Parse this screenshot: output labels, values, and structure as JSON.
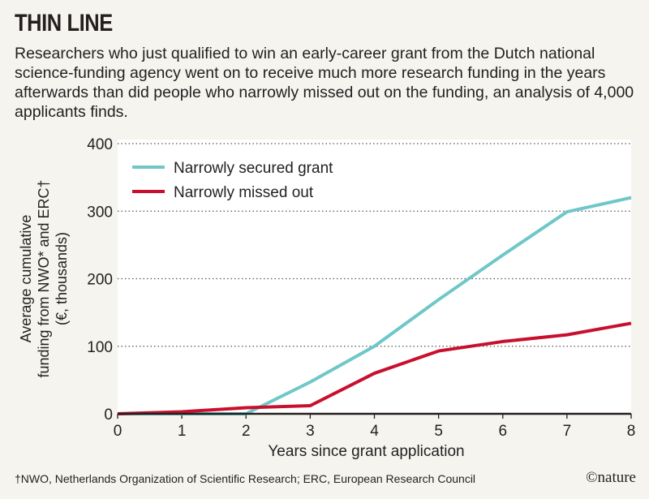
{
  "title": "THIN LINE",
  "subtitle": "Researchers who just qualified to win an early-career grant from the Dutch national science-funding agency went on to receive much more research funding in the years afterwards than did people who narrowly missed out on the funding, an analysis of 4,000 applicants finds.",
  "footnote": "†NWO, Netherlands Organization of Scientific Research; ERC, European Research Council",
  "logo": "©nature",
  "chart_data": {
    "type": "line",
    "xlabel": "Years since grant application",
    "ylabel_lines": [
      "Average cumulative",
      "funding from NWO* and ERC†",
      "(€, thousands)"
    ],
    "x": [
      0,
      1,
      2,
      3,
      4,
      5,
      6,
      7,
      8
    ],
    "xlim": [
      0,
      8
    ],
    "ylim": [
      0,
      400
    ],
    "xticks": [
      0,
      1,
      2,
      3,
      4,
      5,
      6,
      7,
      8
    ],
    "yticks": [
      0,
      100,
      200,
      300,
      400
    ],
    "grid": "horizontal dotted",
    "legend": "top-left",
    "series": [
      {
        "name": "Narrowly secured grant",
        "color": "#6fc7c7",
        "values": [
          0,
          0,
          0,
          47,
          100,
          169,
          235,
          299,
          320
        ]
      },
      {
        "name": "Narrowly missed out",
        "color": "#c8102e",
        "values": [
          0,
          3,
          9,
          12,
          60,
          93,
          107,
          117,
          134
        ]
      }
    ]
  }
}
